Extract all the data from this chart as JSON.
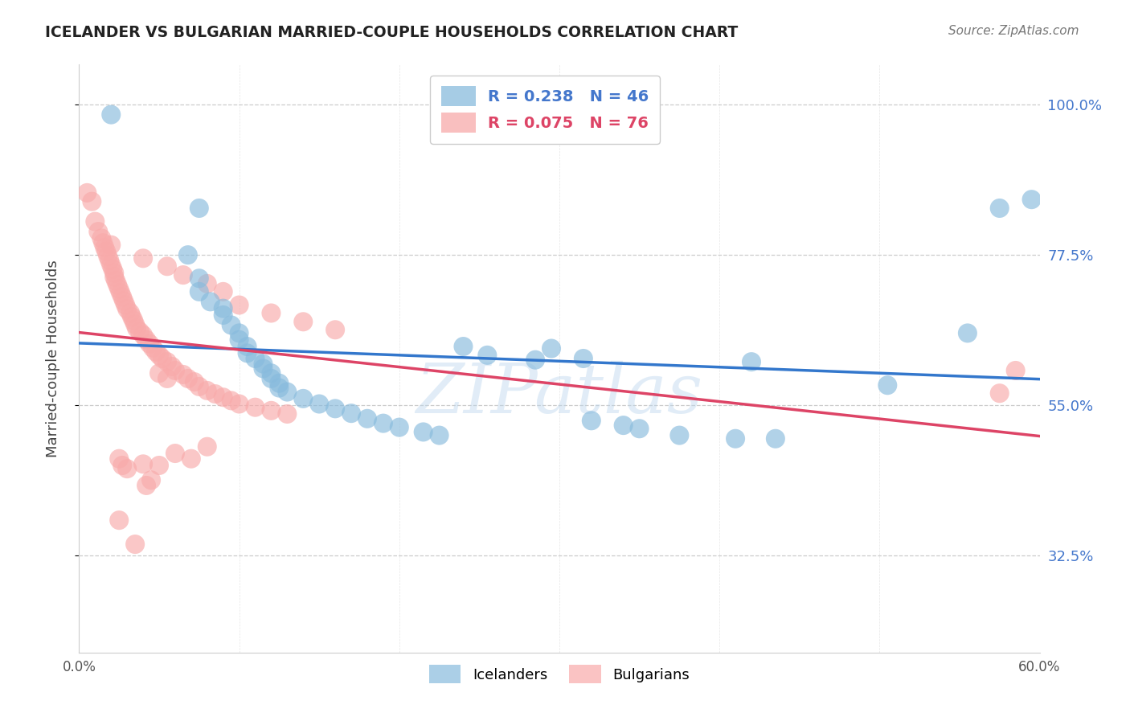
{
  "title": "ICELANDER VS BULGARIAN MARRIED-COUPLE HOUSEHOLDS CORRELATION CHART",
  "source": "Source: ZipAtlas.com",
  "ylabel": "Married-couple Households",
  "ytick_labels": [
    "100.0%",
    "77.5%",
    "55.0%",
    "32.5%"
  ],
  "ytick_values": [
    1.0,
    0.775,
    0.55,
    0.325
  ],
  "xtick_labels": [
    "0.0%",
    "60.0%"
  ],
  "xtick_values": [
    0.0,
    0.6
  ],
  "xlim": [
    0.0,
    0.6
  ],
  "ylim": [
    0.18,
    1.06
  ],
  "icelander_color": "#88bbdd",
  "bulgarian_color": "#f8aaaa",
  "icelander_line_color": "#3377cc",
  "bulgarian_line_color": "#dd4466",
  "legend_entries": [
    {
      "label": "R = 0.238   N = 46",
      "text_color": "#4477cc",
      "face": "#88bbdd"
    },
    {
      "label": "R = 0.075   N = 76",
      "text_color": "#dd4466",
      "face": "#f8aaaa"
    }
  ],
  "bottom_legend": [
    "Icelanders",
    "Bulgarians"
  ],
  "watermark": "ZIPatlas",
  "background_color": "#ffffff",
  "grid_color": "#cccccc",
  "title_color": "#222222",
  "ylabel_color": "#444444",
  "ytick_color": "#4477cc",
  "icelander_points": [
    [
      0.02,
      0.985
    ],
    [
      0.075,
      0.845
    ],
    [
      0.068,
      0.775
    ],
    [
      0.075,
      0.74
    ],
    [
      0.075,
      0.72
    ],
    [
      0.082,
      0.705
    ],
    [
      0.09,
      0.695
    ],
    [
      0.09,
      0.685
    ],
    [
      0.095,
      0.67
    ],
    [
      0.1,
      0.658
    ],
    [
      0.1,
      0.648
    ],
    [
      0.105,
      0.638
    ],
    [
      0.105,
      0.628
    ],
    [
      0.11,
      0.62
    ],
    [
      0.115,
      0.612
    ],
    [
      0.115,
      0.605
    ],
    [
      0.12,
      0.598
    ],
    [
      0.12,
      0.59
    ],
    [
      0.125,
      0.583
    ],
    [
      0.125,
      0.576
    ],
    [
      0.13,
      0.57
    ],
    [
      0.14,
      0.56
    ],
    [
      0.15,
      0.552
    ],
    [
      0.16,
      0.545
    ],
    [
      0.17,
      0.538
    ],
    [
      0.18,
      0.53
    ],
    [
      0.19,
      0.523
    ],
    [
      0.2,
      0.517
    ],
    [
      0.215,
      0.51
    ],
    [
      0.225,
      0.505
    ],
    [
      0.24,
      0.638
    ],
    [
      0.255,
      0.625
    ],
    [
      0.285,
      0.618
    ],
    [
      0.295,
      0.635
    ],
    [
      0.315,
      0.62
    ],
    [
      0.32,
      0.527
    ],
    [
      0.34,
      0.52
    ],
    [
      0.35,
      0.515
    ],
    [
      0.375,
      0.505
    ],
    [
      0.41,
      0.5
    ],
    [
      0.42,
      0.615
    ],
    [
      0.435,
      0.5
    ],
    [
      0.505,
      0.58
    ],
    [
      0.555,
      0.658
    ],
    [
      0.575,
      0.845
    ],
    [
      0.595,
      0.858
    ]
  ],
  "bulgarian_points": [
    [
      0.005,
      0.868
    ],
    [
      0.008,
      0.855
    ],
    [
      0.01,
      0.825
    ],
    [
      0.012,
      0.81
    ],
    [
      0.014,
      0.8
    ],
    [
      0.015,
      0.793
    ],
    [
      0.016,
      0.786
    ],
    [
      0.017,
      0.78
    ],
    [
      0.018,
      0.773
    ],
    [
      0.019,
      0.767
    ],
    [
      0.02,
      0.76
    ],
    [
      0.021,
      0.754
    ],
    [
      0.022,
      0.748
    ],
    [
      0.022,
      0.742
    ],
    [
      0.023,
      0.736
    ],
    [
      0.024,
      0.73
    ],
    [
      0.025,
      0.724
    ],
    [
      0.026,
      0.718
    ],
    [
      0.027,
      0.712
    ],
    [
      0.028,
      0.706
    ],
    [
      0.029,
      0.7
    ],
    [
      0.03,
      0.694
    ],
    [
      0.032,
      0.688
    ],
    [
      0.033,
      0.682
    ],
    [
      0.034,
      0.677
    ],
    [
      0.035,
      0.671
    ],
    [
      0.036,
      0.665
    ],
    [
      0.038,
      0.66
    ],
    [
      0.04,
      0.655
    ],
    [
      0.042,
      0.648
    ],
    [
      0.044,
      0.642
    ],
    [
      0.046,
      0.636
    ],
    [
      0.048,
      0.63
    ],
    [
      0.05,
      0.625
    ],
    [
      0.052,
      0.62
    ],
    [
      0.055,
      0.615
    ],
    [
      0.058,
      0.608
    ],
    [
      0.06,
      0.602
    ],
    [
      0.065,
      0.596
    ],
    [
      0.068,
      0.59
    ],
    [
      0.072,
      0.585
    ],
    [
      0.075,
      0.578
    ],
    [
      0.08,
      0.572
    ],
    [
      0.085,
      0.567
    ],
    [
      0.09,
      0.562
    ],
    [
      0.095,
      0.557
    ],
    [
      0.1,
      0.552
    ],
    [
      0.11,
      0.547
    ],
    [
      0.12,
      0.542
    ],
    [
      0.13,
      0.537
    ],
    [
      0.02,
      0.79
    ],
    [
      0.04,
      0.77
    ],
    [
      0.055,
      0.758
    ],
    [
      0.065,
      0.745
    ],
    [
      0.08,
      0.732
    ],
    [
      0.09,
      0.72
    ],
    [
      0.1,
      0.7
    ],
    [
      0.12,
      0.688
    ],
    [
      0.14,
      0.675
    ],
    [
      0.16,
      0.663
    ],
    [
      0.025,
      0.47
    ],
    [
      0.027,
      0.46
    ],
    [
      0.03,
      0.455
    ],
    [
      0.04,
      0.462
    ],
    [
      0.05,
      0.46
    ],
    [
      0.06,
      0.478
    ],
    [
      0.07,
      0.47
    ],
    [
      0.08,
      0.488
    ],
    [
      0.025,
      0.378
    ],
    [
      0.035,
      0.342
    ],
    [
      0.042,
      0.43
    ],
    [
      0.045,
      0.438
    ],
    [
      0.05,
      0.598
    ],
    [
      0.055,
      0.59
    ],
    [
      0.575,
      0.568
    ],
    [
      0.585,
      0.602
    ]
  ]
}
